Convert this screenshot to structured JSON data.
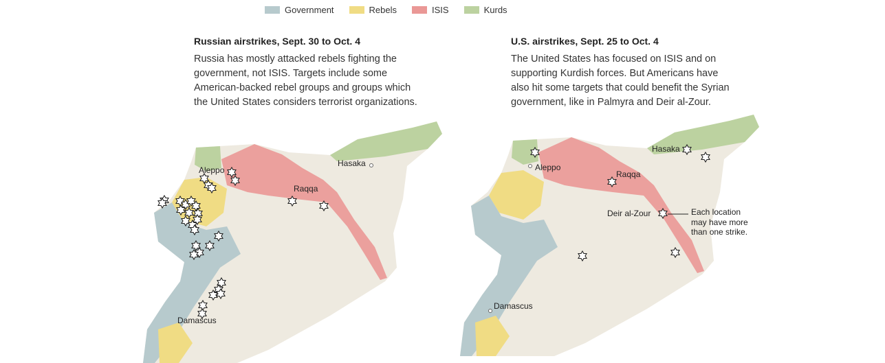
{
  "legend": {
    "items": [
      {
        "label": "Government",
        "color": "#b7cacd"
      },
      {
        "label": "Rebels",
        "color": "#f0dc84"
      },
      {
        "label": "ISIS",
        "color": "#ea9896"
      },
      {
        "label": "Kurds",
        "color": "#bcd2a0"
      }
    ]
  },
  "maps": [
    {
      "title": "Russian airstrikes, Sept. 30 to Oct. 4",
      "description": "Russia has mostly attacked rebels fighting the government, not ISIS. Targets include some American-backed rebel groups and groups which the United States considers terrorist organizations.",
      "places": [
        "Aleppo",
        "Raqqa",
        "Hasaka",
        "Damascus"
      ]
    },
    {
      "title": "U.S. airstrikes, Sept. 25 to Oct. 4",
      "description": "The United States has focused on ISIS and on supporting Kurdish forces. But Americans have also hit some targets that could benefit the Syrian government, like in Palmyra and Deir al-Zour.",
      "places": [
        "Hasaka",
        "Aleppo",
        "Raqqa",
        "Deir al-Zour",
        "Damascus"
      ],
      "annotation": [
        "Each location",
        "may have more",
        "than one strike."
      ]
    }
  ]
}
